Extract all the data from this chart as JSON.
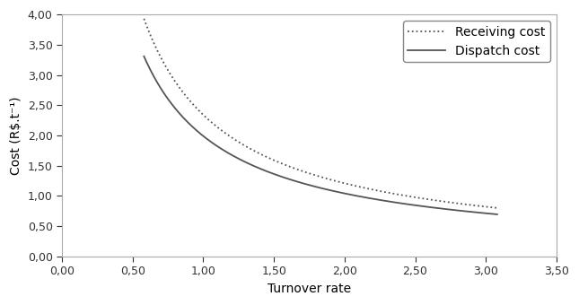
{
  "xlabel": "Turnover rate",
  "ylabel": "Cost (R$.t⁻¹)",
  "xlim": [
    0.0,
    3.5
  ],
  "ylim": [
    0.0,
    4.0
  ],
  "xticks": [
    0.0,
    0.5,
    1.0,
    1.5,
    2.0,
    2.5,
    3.0,
    3.5
  ],
  "yticks": [
    0.0,
    0.5,
    1.0,
    1.5,
    2.0,
    2.5,
    3.0,
    3.5,
    4.0
  ],
  "x_start": 0.58,
  "x_end": 3.08,
  "receiving_a": 2.34,
  "receiving_b": 0.952,
  "dispatch_a": 1.99,
  "dispatch_b": 0.933,
  "line_color": "#555555",
  "legend_labels": [
    "Receiving cost",
    "Dispatch cost"
  ],
  "legend_loc": "upper right",
  "font_size": 10,
  "tick_font_size": 9,
  "figure_bg": "#ffffff",
  "axes_bg": "#ffffff",
  "spine_color": "#aaaaaa",
  "legend_fontsize": 10
}
